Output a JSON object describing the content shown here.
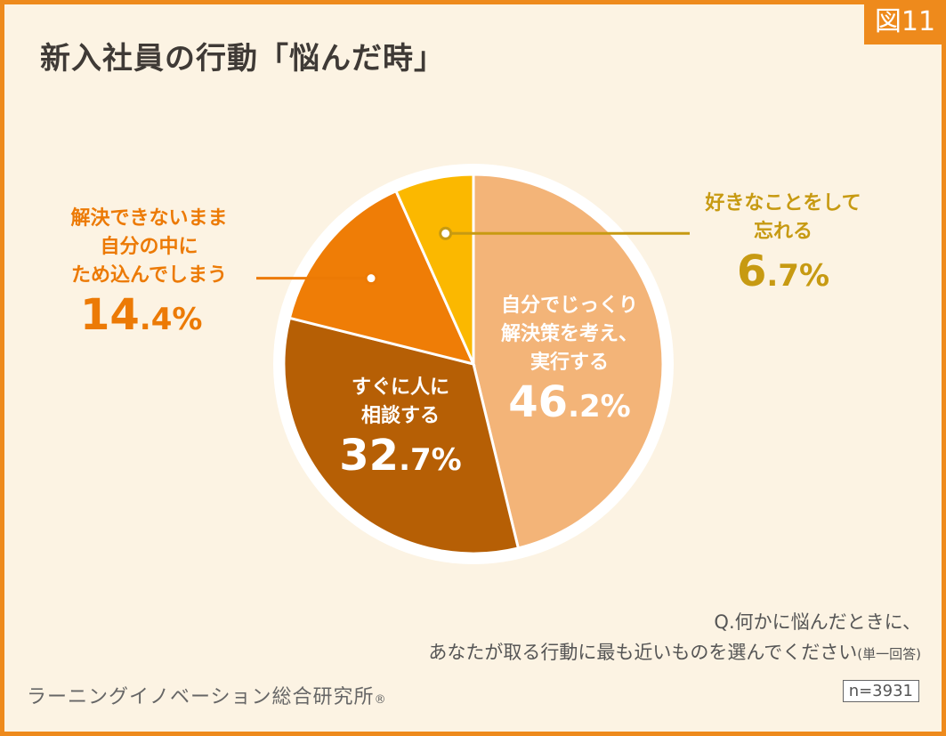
{
  "figure_label": "図11",
  "title": "新入社員の行動「悩んだ時」",
  "question": {
    "line1": "Q.何かに悩んだときに、",
    "line2": "あなたが取る行動に最も近いものを選んでください",
    "note": "(単一回答)"
  },
  "organization": "ラーニングイノベーション総合研究所",
  "registered_mark": "®",
  "sample": "n=3931",
  "colors": {
    "frame": "#ee8a1c",
    "background": "#fcf3e3",
    "slice_solve": "#f3b478",
    "slice_consult": "#b65f05",
    "slice_keep": "#ef7d06",
    "slice_forget": "#fbb800",
    "label_keep": "#ec7a05",
    "label_forget": "#c79a12"
  },
  "chart_data": {
    "type": "pie",
    "start": "12 o'clock",
    "direction": "clockwise",
    "slices": [
      {
        "label_lines": [
          "自分でじっくり",
          "解決策を考え、",
          "実行する"
        ],
        "value": 46.2,
        "pct_int": "46",
        "pct_rest": ".2%",
        "color": "#f3b478"
      },
      {
        "label_lines": [
          "すぐに人に",
          "相談する"
        ],
        "value": 32.7,
        "pct_int": "32",
        "pct_rest": ".7%",
        "color": "#b65f05"
      },
      {
        "label_lines": [
          "解決できないまま",
          "自分の中に",
          "ため込んでしまう"
        ],
        "value": 14.4,
        "pct_int": "14",
        "pct_rest": ".4%",
        "color": "#ef7d06"
      },
      {
        "label_lines": [
          "好きなことをして",
          "忘れる"
        ],
        "value": 6.7,
        "pct_int": "6",
        "pct_rest": ".7%",
        "color": "#fbb800"
      }
    ]
  }
}
